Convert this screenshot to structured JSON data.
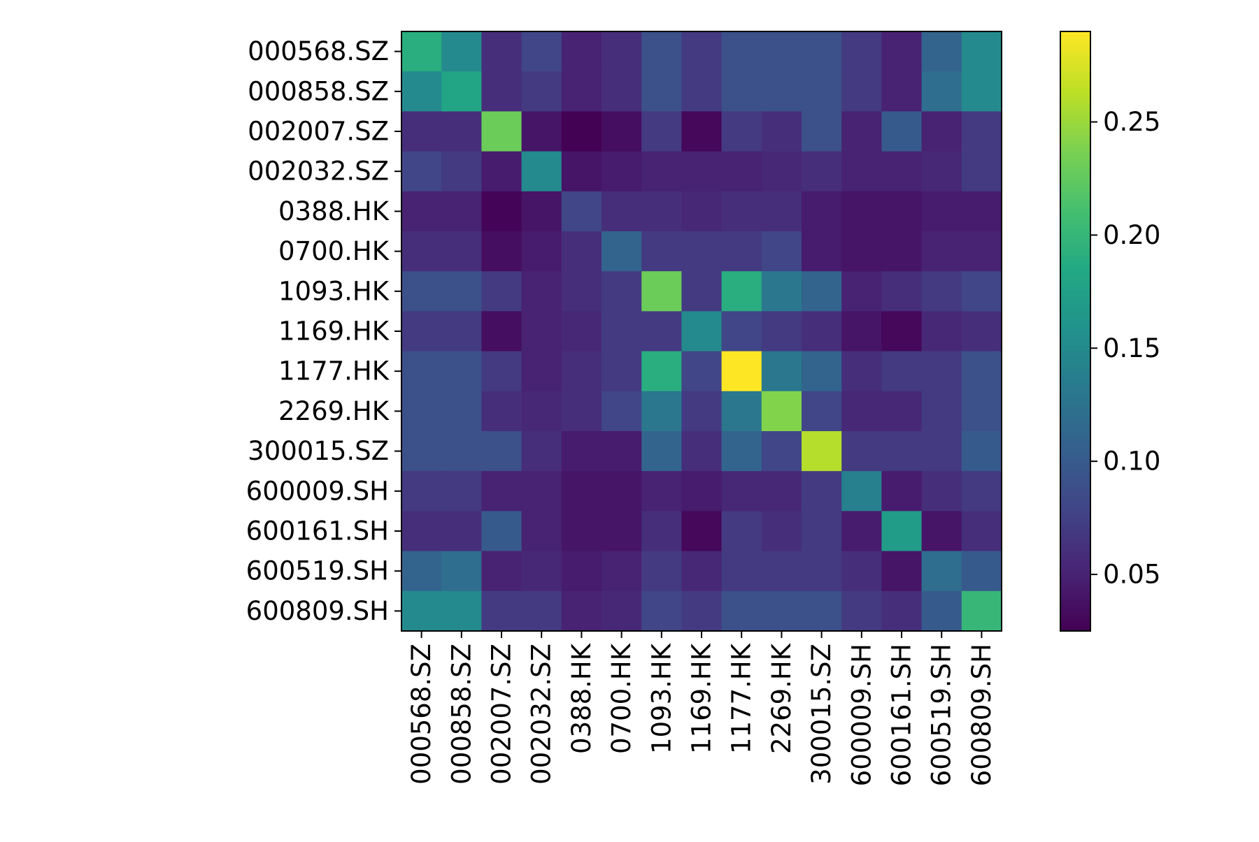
{
  "chart_data": {
    "type": "heatmap",
    "title": "",
    "xlabel": "",
    "ylabel": "",
    "x_labels": [
      "000568.SZ",
      "000858.SZ",
      "002007.SZ",
      "002032.SZ",
      "0388.HK",
      "0700.HK",
      "1093.HK",
      "1169.HK",
      "1177.HK",
      "2269.HK",
      "300015.SZ",
      "600009.SH",
      "600161.SH",
      "600519.SH",
      "600809.SH"
    ],
    "y_labels": [
      "000568.SZ",
      "000858.SZ",
      "002007.SZ",
      "002032.SZ",
      "0388.HK",
      "0700.HK",
      "1093.HK",
      "1169.HK",
      "1177.HK",
      "2269.HK",
      "300015.SZ",
      "600009.SH",
      "600161.SH",
      "600519.SH",
      "600809.SH"
    ],
    "values": [
      [
        0.19,
        0.15,
        0.06,
        0.08,
        0.05,
        0.06,
        0.09,
        0.07,
        0.09,
        0.09,
        0.09,
        0.07,
        0.05,
        0.11,
        0.15
      ],
      [
        0.15,
        0.18,
        0.06,
        0.07,
        0.05,
        0.06,
        0.09,
        0.07,
        0.09,
        0.09,
        0.09,
        0.07,
        0.05,
        0.12,
        0.15
      ],
      [
        0.06,
        0.06,
        0.23,
        0.04,
        0.026,
        0.035,
        0.07,
        0.03,
        0.07,
        0.06,
        0.09,
        0.05,
        0.1,
        0.05,
        0.07
      ],
      [
        0.08,
        0.07,
        0.045,
        0.15,
        0.04,
        0.045,
        0.05,
        0.05,
        0.05,
        0.055,
        0.06,
        0.05,
        0.05,
        0.055,
        0.07
      ],
      [
        0.05,
        0.05,
        0.028,
        0.04,
        0.08,
        0.06,
        0.06,
        0.055,
        0.06,
        0.06,
        0.045,
        0.04,
        0.04,
        0.045,
        0.045
      ],
      [
        0.06,
        0.06,
        0.035,
        0.045,
        0.06,
        0.11,
        0.07,
        0.07,
        0.07,
        0.08,
        0.045,
        0.04,
        0.04,
        0.05,
        0.05
      ],
      [
        0.09,
        0.09,
        0.07,
        0.05,
        0.06,
        0.07,
        0.23,
        0.07,
        0.19,
        0.13,
        0.11,
        0.05,
        0.06,
        0.07,
        0.08
      ],
      [
        0.07,
        0.07,
        0.035,
        0.05,
        0.055,
        0.07,
        0.07,
        0.15,
        0.08,
        0.07,
        0.06,
        0.04,
        0.03,
        0.055,
        0.06
      ],
      [
        0.09,
        0.09,
        0.07,
        0.05,
        0.06,
        0.07,
        0.19,
        0.08,
        0.29,
        0.13,
        0.11,
        0.06,
        0.07,
        0.07,
        0.09
      ],
      [
        0.09,
        0.09,
        0.06,
        0.055,
        0.06,
        0.08,
        0.13,
        0.07,
        0.13,
        0.24,
        0.08,
        0.055,
        0.055,
        0.07,
        0.09
      ],
      [
        0.09,
        0.09,
        0.09,
        0.06,
        0.045,
        0.045,
        0.11,
        0.06,
        0.11,
        0.08,
        0.26,
        0.07,
        0.07,
        0.07,
        0.1
      ],
      [
        0.07,
        0.07,
        0.05,
        0.05,
        0.04,
        0.04,
        0.05,
        0.045,
        0.055,
        0.055,
        0.07,
        0.14,
        0.045,
        0.06,
        0.07
      ],
      [
        0.06,
        0.06,
        0.1,
        0.05,
        0.04,
        0.04,
        0.06,
        0.03,
        0.07,
        0.06,
        0.07,
        0.045,
        0.17,
        0.04,
        0.06
      ],
      [
        0.11,
        0.12,
        0.05,
        0.055,
        0.045,
        0.05,
        0.07,
        0.055,
        0.07,
        0.07,
        0.07,
        0.06,
        0.04,
        0.12,
        0.1
      ],
      [
        0.15,
        0.15,
        0.07,
        0.07,
        0.05,
        0.055,
        0.08,
        0.07,
        0.09,
        0.09,
        0.09,
        0.07,
        0.06,
        0.1,
        0.2
      ]
    ],
    "colormap": "viridis",
    "colorbar": {
      "range": [
        0.025,
        0.29
      ],
      "ticks": [
        0.05,
        0.1,
        0.15,
        0.2,
        0.25
      ],
      "tick_labels": [
        "0.05",
        "0.10",
        "0.15",
        "0.20",
        "0.25"
      ]
    },
    "grid": false,
    "legend": "colorbar-right"
  }
}
